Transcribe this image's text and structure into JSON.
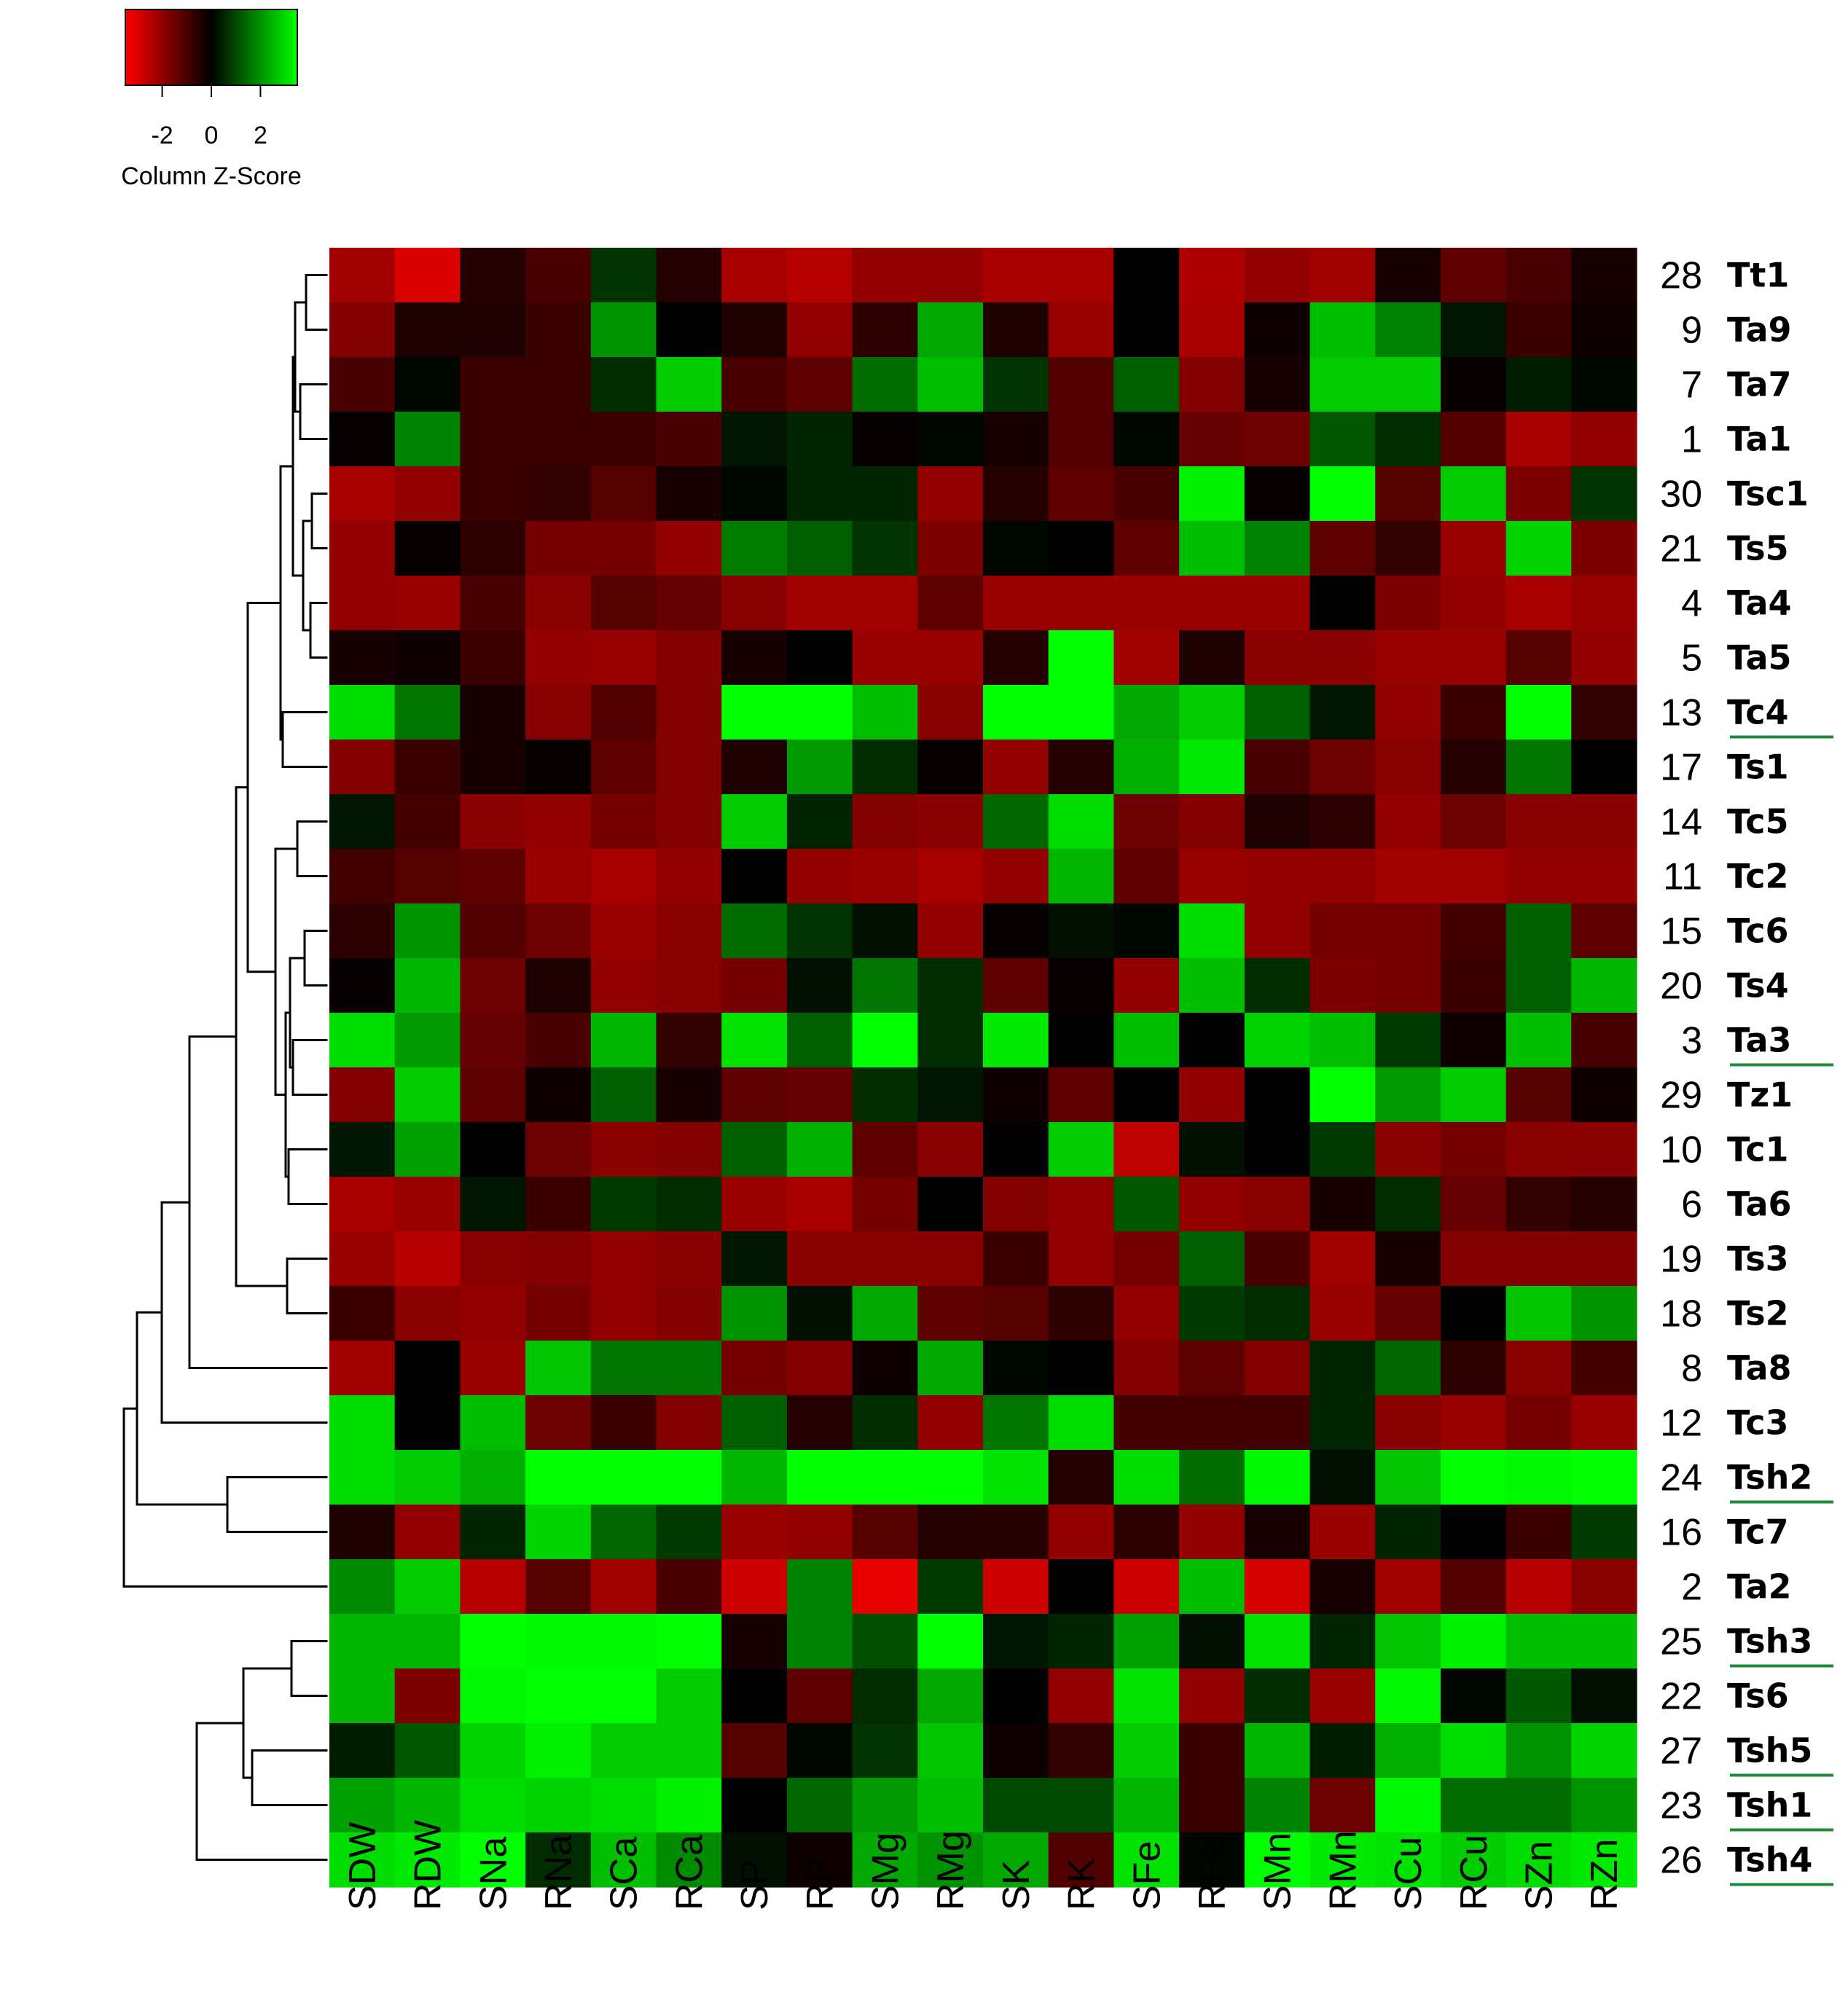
{
  "chart_data": {
    "type": "heatmap",
    "legend": {
      "title": "Column Z-Score",
      "ticks": [
        "-2",
        "0",
        "2"
      ],
      "tick_values": [
        -2,
        0,
        2
      ],
      "range": [
        -3.5,
        3.5
      ],
      "colors": {
        "low": "#ff0000",
        "mid": "#000000",
        "high": "#00ff00"
      }
    },
    "columns": [
      "SDW",
      "RDW",
      "SNa",
      "RNa",
      "SCa",
      "RCa",
      "SP",
      "RP",
      "SMg",
      "RMg",
      "SK",
      "RK",
      "SFe",
      "RFe",
      "SMn",
      "RMn",
      "SCu",
      "RCu",
      "SZn",
      "RZn"
    ],
    "rows": [
      {
        "num": "28",
        "name": "Tt1",
        "underlined": false,
        "values": [
          -2.2,
          -3,
          -0.5,
          -1,
          0.7,
          -0.5,
          -2.3,
          -2.5,
          -2,
          -2,
          -2.3,
          -2.3,
          0,
          -2.4,
          -2,
          -2.2,
          -0.3,
          -1.3,
          -1,
          -0.3
        ]
      },
      {
        "num": "9",
        "name": "Ta9",
        "underlined": false,
        "values": [
          -1.8,
          -0.4,
          -0.4,
          -0.8,
          2,
          0,
          -0.4,
          -2,
          -0.6,
          2.3,
          -0.4,
          -2.1,
          0,
          -2.3,
          -0.2,
          2.6,
          1.8,
          0.3,
          -0.8,
          -0.2
        ]
      },
      {
        "num": "7",
        "name": "Ta7",
        "underlined": false,
        "values": [
          -1,
          0.1,
          -0.8,
          -0.8,
          0.6,
          2.8,
          -1,
          -1.3,
          1.5,
          2.6,
          0.7,
          -1.1,
          1.3,
          -1.8,
          -0.3,
          2.8,
          2.8,
          -0.1,
          0.4,
          0.1
        ]
      },
      {
        "num": "1",
        "name": "Ta1",
        "underlined": false,
        "values": [
          -0.1,
          1.8,
          -0.8,
          -0.8,
          -0.8,
          -1,
          0.3,
          0.5,
          -0.1,
          0.1,
          -0.3,
          -1.1,
          0.1,
          -1.4,
          -1.5,
          1.2,
          0.6,
          -1.1,
          -2.3,
          -2
        ]
      },
      {
        "num": "30",
        "name": "Tsc1",
        "underlined": false,
        "values": [
          -2.3,
          -2,
          -0.8,
          -0.7,
          -1.2,
          -0.3,
          0.1,
          0.5,
          0.5,
          -2,
          -0.5,
          -1.3,
          -1,
          3.3,
          -0.1,
          3.6,
          -1.2,
          2.8,
          -1.7,
          0.7
        ]
      },
      {
        "num": "21",
        "name": "Ts5",
        "underlined": false,
        "values": [
          -2,
          -0.1,
          -0.6,
          -1.6,
          -1.6,
          -2,
          1.7,
          1.3,
          0.7,
          -1.7,
          0.1,
          0,
          -1.3,
          2.6,
          1.8,
          -1.3,
          -0.7,
          -2.1,
          2.9,
          -1.7
        ]
      },
      {
        "num": "4",
        "name": "Ta4",
        "underlined": false,
        "values": [
          -2,
          -2.1,
          -1,
          -1.9,
          -1.2,
          -1.4,
          -1.9,
          -2.2,
          -2.2,
          -1.3,
          -2.1,
          -2.1,
          -2.1,
          -2.1,
          -2.1,
          0,
          -1.7,
          -2,
          -2.3,
          -2.1
        ]
      },
      {
        "num": "5",
        "name": "Ta5",
        "underlined": false,
        "values": [
          -0.3,
          -0.2,
          -0.8,
          -2,
          -2.1,
          -1.8,
          -0.3,
          0,
          -2.1,
          -2.1,
          -0.5,
          3.5,
          -2.2,
          -0.4,
          -1.9,
          -1.9,
          -2.1,
          -2.1,
          -1.2,
          -2
        ]
      },
      {
        "num": "13",
        "name": "Tc4",
        "underlined": true,
        "values": [
          3,
          1.6,
          -0.3,
          -1.9,
          -1.1,
          -1.8,
          3.8,
          3.5,
          2.6,
          -1.9,
          3.8,
          3.6,
          2.3,
          2.8,
          1.3,
          0.3,
          -2,
          -0.8,
          3.5,
          -0.7
        ]
      },
      {
        "num": "17",
        "name": "Ts1",
        "underlined": false,
        "values": [
          -1.8,
          -0.8,
          -0.3,
          -0.1,
          -1.3,
          -1.8,
          -0.4,
          2.1,
          0.6,
          -0.1,
          -2,
          -0.5,
          2.4,
          3.2,
          -1,
          -1.5,
          -1.9,
          -0.5,
          1.6,
          0
        ]
      },
      {
        "num": "14",
        "name": "Tc5",
        "underlined": false,
        "values": [
          0.3,
          -0.9,
          -1.9,
          -2,
          -1.6,
          -1.8,
          2.8,
          0.5,
          -1.8,
          -1.9,
          1.4,
          3,
          -1.5,
          -1.8,
          -0.4,
          -0.6,
          -2,
          -1.5,
          -1.9,
          -1.9
        ]
      },
      {
        "num": "11",
        "name": "Tc2",
        "underlined": false,
        "values": [
          -0.9,
          -1.2,
          -1.3,
          -2.1,
          -2.3,
          -2,
          0,
          -2,
          -2.1,
          -2.3,
          -2,
          2.5,
          -1.3,
          -2.1,
          -2,
          -2,
          -2.2,
          -2.2,
          -2,
          -2
        ]
      },
      {
        "num": "15",
        "name": "Tc6",
        "underlined": false,
        "values": [
          -0.6,
          2,
          -1.1,
          -1.5,
          -2.1,
          -1.9,
          1.5,
          0.7,
          0.2,
          -2,
          -0.1,
          0.2,
          0.1,
          3,
          -2,
          -1.6,
          -1.6,
          -0.9,
          1.3,
          -1.3
        ]
      },
      {
        "num": "20",
        "name": "Ts4",
        "underlined": false,
        "values": [
          -0.1,
          2.5,
          -1.5,
          -0.4,
          -2,
          -1.9,
          -1.6,
          0.2,
          1.6,
          0.6,
          -1.3,
          -0.1,
          -2,
          2.6,
          0.6,
          -1.7,
          -1.6,
          -0.8,
          1.3,
          2.5
        ]
      },
      {
        "num": "3",
        "name": "Ta3",
        "underlined": true,
        "values": [
          3,
          2.1,
          -1.4,
          -1,
          2.5,
          -0.7,
          3.1,
          1.3,
          3.5,
          0.6,
          3.2,
          0,
          2.6,
          0,
          2.9,
          2.6,
          0.8,
          -0.2,
          2.6,
          -1
        ]
      },
      {
        "num": "29",
        "name": "Tz1",
        "underlined": false,
        "values": [
          -1.8,
          2.8,
          -1.3,
          -0.2,
          1.3,
          -0.3,
          -1.3,
          -1.4,
          0.6,
          0.3,
          -0.2,
          -1.3,
          0,
          -2,
          0,
          3.9,
          2.1,
          2.8,
          -1.2,
          -0.2
        ]
      },
      {
        "num": "10",
        "name": "Tc1",
        "underlined": false,
        "values": [
          0.3,
          2.2,
          0,
          -1.5,
          -1.9,
          -1.8,
          1.3,
          2.4,
          -1.3,
          -1.9,
          0,
          2.8,
          -2.6,
          0.2,
          0,
          0.8,
          -1.9,
          -1.6,
          -1.9,
          -1.9
        ]
      },
      {
        "num": "6",
        "name": "Ta6",
        "underlined": false,
        "values": [
          -2.3,
          -2.1,
          0.3,
          -0.8,
          0.8,
          0.6,
          -2.1,
          -2.3,
          -1.6,
          0,
          -1.8,
          -2,
          1.2,
          -2,
          -1.9,
          -0.3,
          0.6,
          -1.4,
          -0.7,
          -0.5
        ]
      },
      {
        "num": "19",
        "name": "Ts3",
        "underlined": false,
        "values": [
          -2.1,
          -2.5,
          -1.9,
          -1.8,
          -2,
          -1.9,
          0.3,
          -1.9,
          -1.9,
          -1.9,
          -0.8,
          -2,
          -1.6,
          1.3,
          -1,
          -2.2,
          -0.3,
          -1.8,
          -1.8,
          -1.8
        ]
      },
      {
        "num": "18",
        "name": "Ts2",
        "underlined": false,
        "values": [
          -0.8,
          -1.9,
          -2,
          -1.6,
          -2,
          -1.8,
          2,
          0.2,
          2.3,
          -1.3,
          -1.2,
          -0.6,
          -2,
          0.8,
          0.6,
          -2.1,
          -1.4,
          0,
          2.7,
          2
        ]
      },
      {
        "num": "8",
        "name": "Ta8",
        "underlined": false,
        "values": [
          -2.2,
          0,
          -2.1,
          2.7,
          1.6,
          1.6,
          -1.6,
          -1.8,
          -0.2,
          2.3,
          0.1,
          0,
          -1.8,
          -1.3,
          -1.8,
          0.5,
          1.4,
          -0.6,
          -1.9,
          -0.9
        ]
      },
      {
        "num": "12",
        "name": "Tc3",
        "underlined": false,
        "values": [
          3,
          0,
          2.6,
          -1.5,
          -0.8,
          -1.8,
          1.3,
          -0.5,
          0.6,
          -2,
          1.6,
          3,
          -0.9,
          -0.9,
          -0.9,
          0.5,
          -1.9,
          -2.1,
          -1.6,
          -2.1
        ]
      },
      {
        "num": "24",
        "name": "Tsh2",
        "underlined": true,
        "values": [
          3,
          2.8,
          2.4,
          3.5,
          3.5,
          3.5,
          2.5,
          3.8,
          3.6,
          3.7,
          3.1,
          -0.5,
          3,
          1.5,
          3.4,
          0.2,
          2.7,
          4,
          3.4,
          4.2
        ]
      },
      {
        "num": "16",
        "name": "Tc7",
        "underlined": false,
        "values": [
          -0.4,
          -2,
          0.5,
          2.9,
          1.4,
          0.8,
          -2.1,
          -2,
          -1.2,
          -0.5,
          -0.5,
          -2,
          -0.6,
          -2,
          -0.3,
          -2.1,
          0.5,
          0,
          -0.8,
          0.8
        ]
      },
      {
        "num": "2",
        "name": "Ta2",
        "underlined": false,
        "values": [
          1.9,
          2.8,
          -2.5,
          -1.2,
          -2.2,
          -1,
          -2.8,
          1.8,
          -3.2,
          0.8,
          -2.8,
          0,
          -2.8,
          2.6,
          -2.9,
          -0.3,
          -2.2,
          -1.1,
          -2.5,
          -1.9
        ]
      },
      {
        "num": "25",
        "name": "Tsh3",
        "underlined": true,
        "values": [
          2.5,
          2.5,
          3.6,
          3.4,
          3.4,
          3.8,
          -0.3,
          1.8,
          1.1,
          3.8,
          0.3,
          0.5,
          2.2,
          0.2,
          3.1,
          0.5,
          2.7,
          3.3,
          2.6,
          2.6
        ]
      },
      {
        "num": "22",
        "name": "Ts6",
        "underlined": false,
        "values": [
          2.5,
          -1.7,
          3.4,
          3.6,
          3.5,
          2.8,
          0,
          -1.3,
          0.6,
          2.3,
          0,
          -2,
          3.1,
          -2,
          0.6,
          -2.1,
          3.4,
          0.1,
          1.2,
          0.2
        ]
      },
      {
        "num": "27",
        "name": "Tsh5",
        "underlined": true,
        "values": [
          0.4,
          1.2,
          2.9,
          3.3,
          2.8,
          2.8,
          -1.2,
          0.1,
          0.7,
          2.7,
          -0.2,
          -0.7,
          2.8,
          -0.8,
          2.5,
          0.4,
          2.4,
          3,
          2,
          2.9
        ]
      },
      {
        "num": "23",
        "name": "Tsh1",
        "underlined": true,
        "values": [
          2.2,
          2.5,
          3,
          2.9,
          3,
          3.3,
          0,
          1.4,
          2.1,
          2.6,
          1,
          1,
          2.5,
          -0.8,
          1.8,
          -1.5,
          3.4,
          1.5,
          1.5,
          2
        ]
      },
      {
        "num": "26",
        "name": "Tsh4",
        "underlined": true,
        "values": [
          3,
          3.2,
          3.7,
          0.6,
          2.6,
          1.9,
          0.2,
          -0.2,
          2.3,
          2,
          2.3,
          -1.1,
          3.1,
          0.1,
          3.5,
          3.2,
          3.1,
          2.8,
          3,
          3.2
        ]
      }
    ]
  }
}
